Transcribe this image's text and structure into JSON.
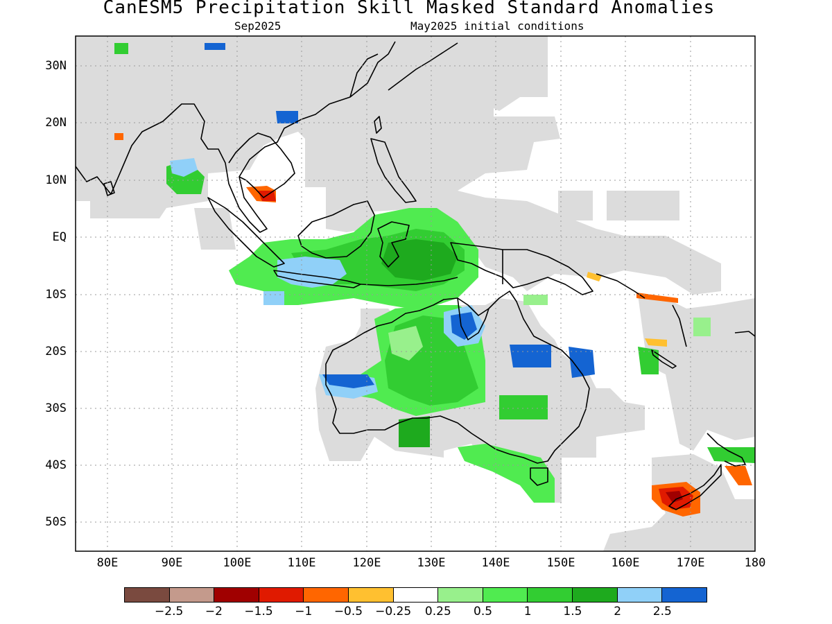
{
  "title": "CanESM5 Precipitation Skill Masked Standard Anomalies",
  "subtitle_left": "Sep2025",
  "subtitle_right": "May2025 initial conditions",
  "latitude_labels": [
    "30N",
    "20N",
    "10N",
    "EQ",
    "10S",
    "20S",
    "30S",
    "40S",
    "50S"
  ],
  "longitude_labels": [
    "80E",
    "90E",
    "100E",
    "110E",
    "120E",
    "130E",
    "140E",
    "150E",
    "160E",
    "170E",
    "180"
  ],
  "legend": {
    "colors": [
      "#7a4a3f",
      "#c49a8c",
      "#a00000",
      "#e01a00",
      "#ff6600",
      "#ffc030",
      "#ffffff",
      "#98f08c",
      "#50eb50",
      "#32cd32",
      "#1eaa1e",
      "#90d0f8",
      "#1464d2"
    ],
    "labels": [
      "−2.5",
      "−2",
      "−1.5",
      "−1",
      "−0.5",
      "−0.25",
      "0.25",
      "0.5",
      "1",
      "1.5",
      "2",
      "2.5"
    ]
  },
  "colors": {
    "masked_gray": "#dcdcdc",
    "coast": "#000000",
    "grid": "#9a9a9a"
  }
}
